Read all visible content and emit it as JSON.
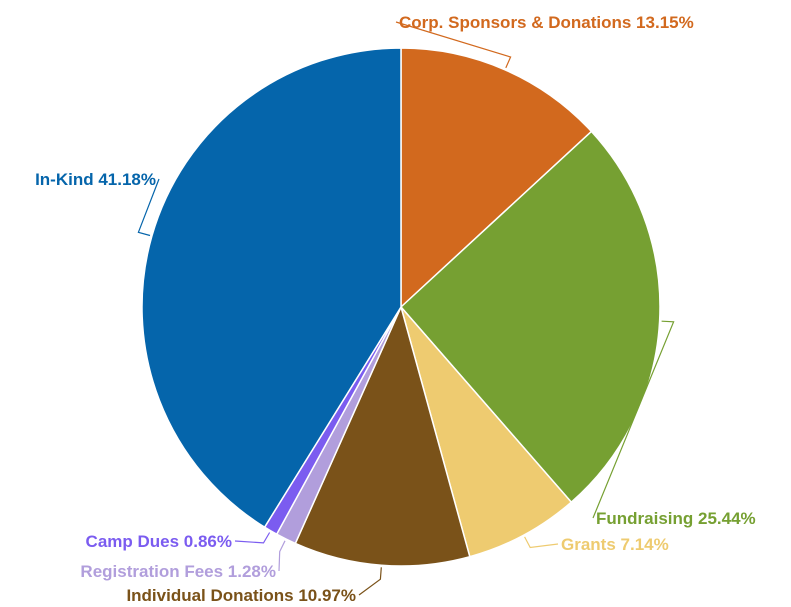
{
  "chart_data": {
    "type": "pie",
    "title": "",
    "start_angle_deg": 0,
    "direction": "clockwise",
    "slices": [
      {
        "label": "Corp. Sponsors & Donations",
        "value": 13.15,
        "display": "Corp. Sponsors & Donations 13.15%",
        "color": "#D2691E"
      },
      {
        "label": "Fundraising",
        "value": 25.44,
        "display": "Fundraising 25.44%",
        "color": "#76A032"
      },
      {
        "label": "Grants",
        "value": 7.14,
        "display": "Grants 7.14%",
        "color": "#EECB70"
      },
      {
        "label": "Individual Donations",
        "value": 10.97,
        "display": "Individual Donations 10.97%",
        "color": "#7A5219"
      },
      {
        "label": "Registration Fees",
        "value": 1.28,
        "display": "Registration Fees 1.28%",
        "color": "#B19EDC"
      },
      {
        "label": "Camp Dues",
        "value": 0.86,
        "display": "Camp Dues 0.86%",
        "color": "#7B5CF0"
      },
      {
        "label": "In-Kind",
        "value": 41.18,
        "display": "In-Kind 41.18%",
        "color": "#0565AB"
      }
    ]
  }
}
